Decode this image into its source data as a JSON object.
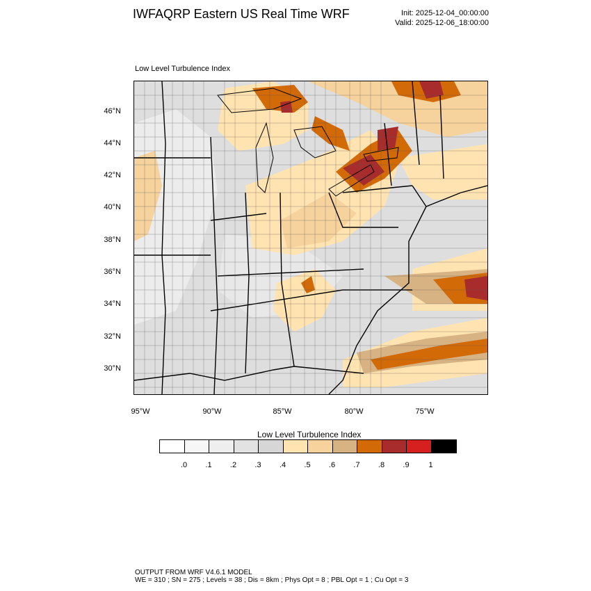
{
  "header": {
    "title": "IWFAQRP Eastern US Real Time WRF",
    "init": "Init: 2025-12-04_00:00:00",
    "valid": "Valid: 2025-12-06_18:00:00"
  },
  "map": {
    "label": "Low Level Turbulence Index",
    "lat_labels": [
      "46°N",
      "44°N",
      "42°N",
      "40°N",
      "38°N",
      "36°N",
      "34°N",
      "32°N",
      "30°N"
    ],
    "lon_labels": [
      "95°W",
      "90°W",
      "85°W",
      "80°W",
      "75°W"
    ]
  },
  "colorbar": {
    "title": "Low Level Turbulence Index",
    "colors": [
      "#ffffff",
      "#f6f6f6",
      "#eeeeee",
      "#e2e2e2",
      "#d6d6d6",
      "#ffe3b0",
      "#f6d29c",
      "#d7b383",
      "#d36a08",
      "#a82c2c",
      "#d62020",
      "#000000"
    ],
    "labels": [
      ".0",
      ".1",
      ".2",
      ".3",
      ".4",
      ".5",
      ".6",
      ".7",
      ".8",
      ".9",
      "1"
    ]
  },
  "footer": {
    "line1": "OUTPUT FROM WRF V4.6.1 MODEL",
    "line2": "WE = 310 ; SN = 275 ; Levels = 38 ; Dis = 8km ; Phys Opt = 8 ; PBL Opt = 1 ; Cu Opt = 3"
  }
}
